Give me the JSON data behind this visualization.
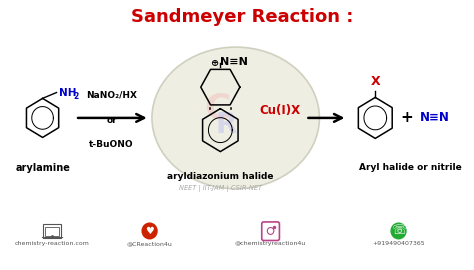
{
  "title": "Sandmeyer Reaction :",
  "title_color": "#cc0000",
  "title_fontsize": 13,
  "bg_color": "#ffffff",
  "fig_width": 4.74,
  "fig_height": 2.7,
  "dpi": 100,
  "catalyst_text": "Cu(I)X",
  "aryldiazonium_label": "aryldiazonium halide",
  "arylamine_label": "arylamine",
  "product_label": "Aryl halide or nitrile",
  "website_text": "chemistry-reaction.com",
  "twitter_text": "@CReaction4u",
  "instagram_text": "@chemistryreaction4u",
  "phone_text": "+919490407365",
  "neet_text": "NEET | IIT-JAM | CSIR-NET",
  "footer_color": "#555555",
  "ellipse_color": "#ededdf",
  "ellipse_edge": "#ccccbb",
  "label_color": "#000000",
  "blue_color": "#0000cc",
  "red_color": "#cc0000",
  "nh2_color": "#0000cc"
}
